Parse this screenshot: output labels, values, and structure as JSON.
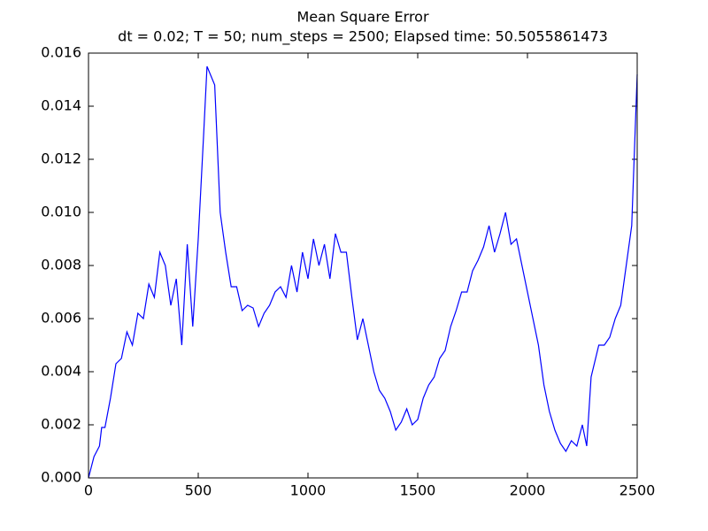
{
  "chart_data": {
    "type": "line",
    "title": "Mean Square Error",
    "subtitle": "dt = 0.02; T = 50; num_steps = 2500; Elapsed time: 50.5055861473",
    "x": [
      0,
      25,
      50,
      60,
      75,
      100,
      125,
      150,
      175,
      200,
      225,
      250,
      275,
      300,
      325,
      350,
      375,
      400,
      425,
      450,
      475,
      500,
      525,
      540,
      575,
      600,
      625,
      650,
      675,
      700,
      725,
      750,
      775,
      800,
      825,
      850,
      875,
      900,
      925,
      950,
      975,
      1000,
      1025,
      1050,
      1075,
      1100,
      1125,
      1150,
      1175,
      1200,
      1225,
      1250,
      1275,
      1300,
      1325,
      1350,
      1375,
      1400,
      1425,
      1450,
      1475,
      1500,
      1525,
      1550,
      1575,
      1600,
      1625,
      1650,
      1675,
      1700,
      1725,
      1750,
      1775,
      1800,
      1825,
      1850,
      1875,
      1900,
      1925,
      1950,
      1975,
      2000,
      2025,
      2050,
      2075,
      2100,
      2125,
      2150,
      2175,
      2200,
      2225,
      2250,
      2270,
      2290,
      2325,
      2350,
      2375,
      2400,
      2425,
      2450,
      2475,
      2500
    ],
    "series": [
      {
        "color": "#0000ff",
        "values": [
          0,
          0.0008,
          0.0012,
          0.0019,
          0.0019,
          0.003,
          0.0043,
          0.0045,
          0.0055,
          0.005,
          0.0062,
          0.006,
          0.0073,
          0.0068,
          0.0085,
          0.008,
          0.0065,
          0.0075,
          0.005,
          0.0088,
          0.0057,
          0.009,
          0.013,
          0.0155,
          0.0148,
          0.01,
          0.0085,
          0.0072,
          0.0072,
          0.0063,
          0.0065,
          0.0064,
          0.0057,
          0.0062,
          0.0065,
          0.007,
          0.0072,
          0.0068,
          0.008,
          0.007,
          0.0085,
          0.0075,
          0.009,
          0.008,
          0.0088,
          0.0075,
          0.0092,
          0.0085,
          0.0085,
          0.0068,
          0.0052,
          0.006,
          0.005,
          0.004,
          0.0033,
          0.003,
          0.0025,
          0.0018,
          0.0021,
          0.0026,
          0.002,
          0.0022,
          0.003,
          0.0035,
          0.0038,
          0.0045,
          0.0048,
          0.0057,
          0.0063,
          0.007,
          0.007,
          0.0078,
          0.0082,
          0.0087,
          0.0095,
          0.0085,
          0.0092,
          0.01,
          0.0088,
          0.009,
          0.008,
          0.007,
          0.006,
          0.005,
          0.0035,
          0.0025,
          0.0018,
          0.0013,
          0.001,
          0.0014,
          0.0012,
          0.002,
          0.0012,
          0.0038,
          0.005,
          0.005,
          0.0053,
          0.006,
          0.0065,
          0.008,
          0.0095,
          0.0152
        ]
      }
    ],
    "xlim": [
      0,
      2500
    ],
    "xticks": [
      0,
      500,
      1000,
      1500,
      2000,
      2500
    ],
    "ylim": [
      0,
      0.016
    ],
    "yticks": [
      {
        "value": 0,
        "label": "0.000"
      },
      {
        "value": 0.002,
        "label": "0.002"
      },
      {
        "value": 0.004,
        "label": "0.004"
      },
      {
        "value": 0.006,
        "label": "0.006"
      },
      {
        "value": 0.008,
        "label": "0.008"
      },
      {
        "value": 0.01,
        "label": "0.010"
      },
      {
        "value": 0.012,
        "label": "0.012"
      },
      {
        "value": 0.014,
        "label": "0.014"
      },
      {
        "value": 0.016,
        "label": "0.016"
      }
    ],
    "grid": false
  }
}
